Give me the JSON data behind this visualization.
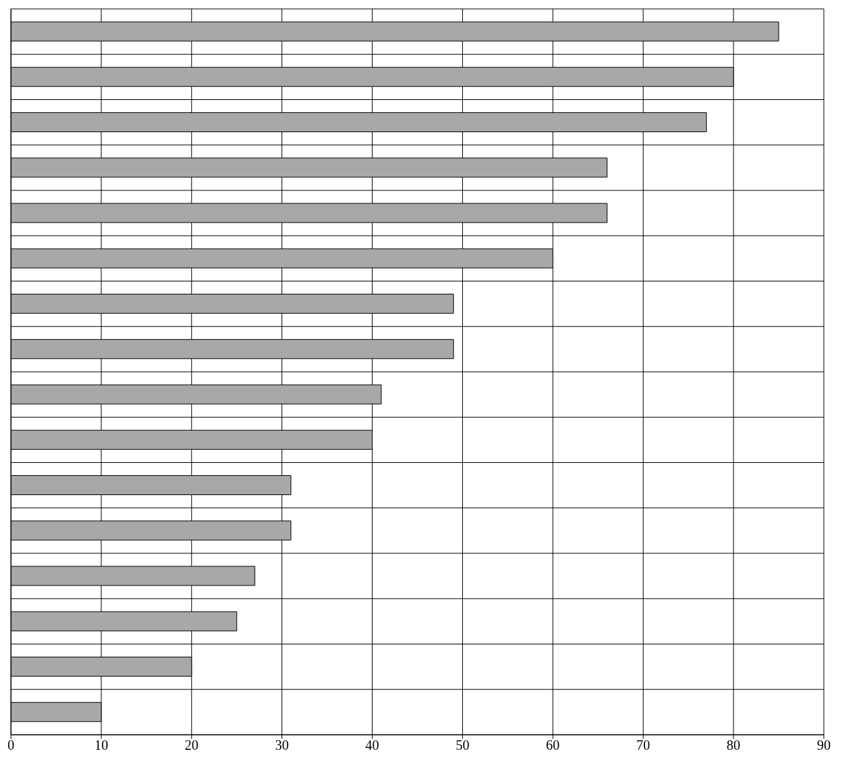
{
  "chart_data": {
    "type": "bar",
    "orientation": "horizontal",
    "categories": [
      null,
      null,
      null,
      null,
      null,
      null,
      null,
      null,
      null,
      null,
      null,
      null,
      null,
      null,
      null,
      null
    ],
    "values": [
      85,
      80,
      77,
      66,
      66,
      60,
      49,
      49,
      41,
      40,
      31,
      31,
      27,
      25,
      20,
      10
    ],
    "color": "#a8a8a8",
    "xlim": [
      0,
      90
    ],
    "xticks": [
      0,
      10,
      20,
      30,
      40,
      50,
      60,
      70,
      80,
      90
    ],
    "grid": true,
    "tick_labels": "x"
  }
}
